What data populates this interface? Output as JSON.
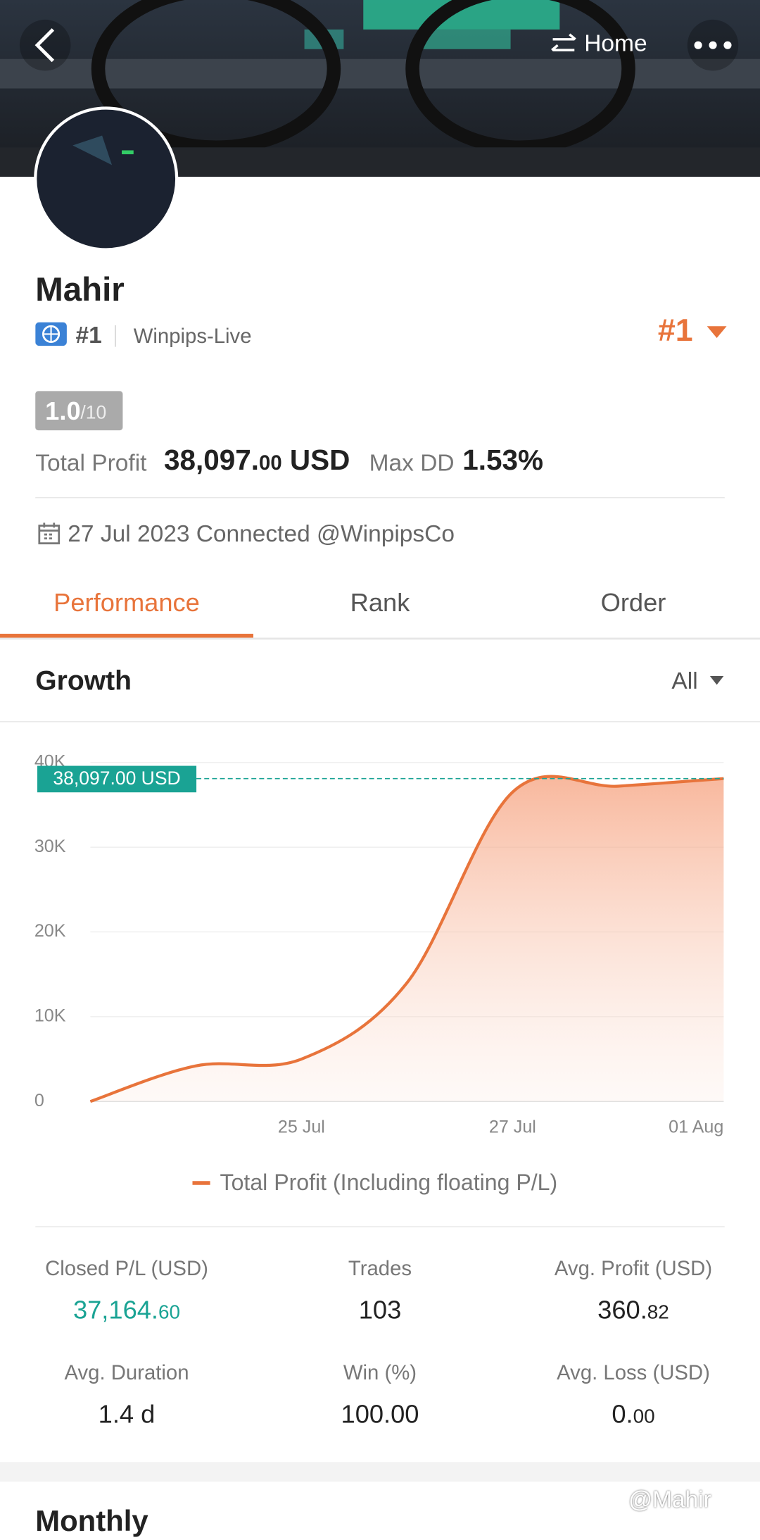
{
  "header": {
    "home": "Home"
  },
  "profile": {
    "name": "Mahir",
    "rank": "#1",
    "server": "Winpips-Live",
    "rank_badge": "#1",
    "rating": "1.0",
    "rating_max": "/10",
    "total_profit_label": "Total Profit",
    "total_profit_main": "38,097.",
    "total_profit_decimals": "00",
    "total_profit_unit": "USD",
    "max_dd_label": "Max DD",
    "max_dd": "1.53%",
    "connected": "27 Jul 2023 Connected @WinpipsCo"
  },
  "tabs": [
    "Performance",
    "Rank",
    "Order"
  ],
  "growth": {
    "title": "Growth",
    "filter": "All"
  },
  "chart_data": {
    "type": "line",
    "area": true,
    "categories": [
      null,
      null,
      "25 Jul",
      null,
      "27 Jul",
      null,
      "01 Aug"
    ],
    "series": [
      {
        "name": "Total Profit (Including floating P/L)",
        "color": "#e8743b",
        "values": [
          0,
          4200,
          5000,
          14000,
          36500,
          37200,
          38097
        ]
      }
    ],
    "ylim": [
      0,
      40000
    ],
    "yticks": [
      {
        "value": 0,
        "label": "0"
      },
      {
        "value": 10000,
        "label": "10K"
      },
      {
        "value": 20000,
        "label": "20K"
      },
      {
        "value": 30000,
        "label": "30K"
      },
      {
        "value": 40000,
        "label": "40K"
      }
    ],
    "grid": true,
    "annotation": {
      "value": 38097,
      "label": "38,097.00 USD",
      "color": "#1aa394"
    }
  },
  "stats": [
    {
      "label": "Closed P/L (USD)",
      "main": "37,164.",
      "decimals": "60",
      "color": "#1aa394"
    },
    {
      "label": "Trades",
      "main": "103"
    },
    {
      "label": "Avg. Profit (USD)",
      "main": "360.",
      "decimals": "82"
    },
    {
      "label": "Avg. Duration",
      "main": "1.4 d"
    },
    {
      "label": "Win (%)",
      "main": "100.00"
    },
    {
      "label": "Avg. Loss (USD)",
      "main": "0.",
      "decimals": "00"
    }
  ],
  "monthly_title": "Monthly",
  "watermark": "@Mahir"
}
